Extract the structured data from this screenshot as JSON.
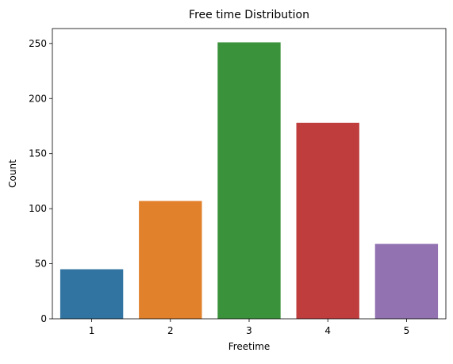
{
  "chart_data": {
    "type": "bar",
    "title": "Free time Distribution",
    "xlabel": "Freetime",
    "ylabel": "Count",
    "categories": [
      "1",
      "2",
      "3",
      "4",
      "5"
    ],
    "values": [
      45,
      107,
      251,
      178,
      68
    ],
    "colors": [
      "#3274a1",
      "#e1812c",
      "#3a923a",
      "#c03d3e",
      "#9372b2"
    ],
    "ylim": [
      0,
      263.55
    ],
    "yticks": [
      0,
      50,
      100,
      150,
      200,
      250
    ],
    "grid": false,
    "legend": "none"
  }
}
